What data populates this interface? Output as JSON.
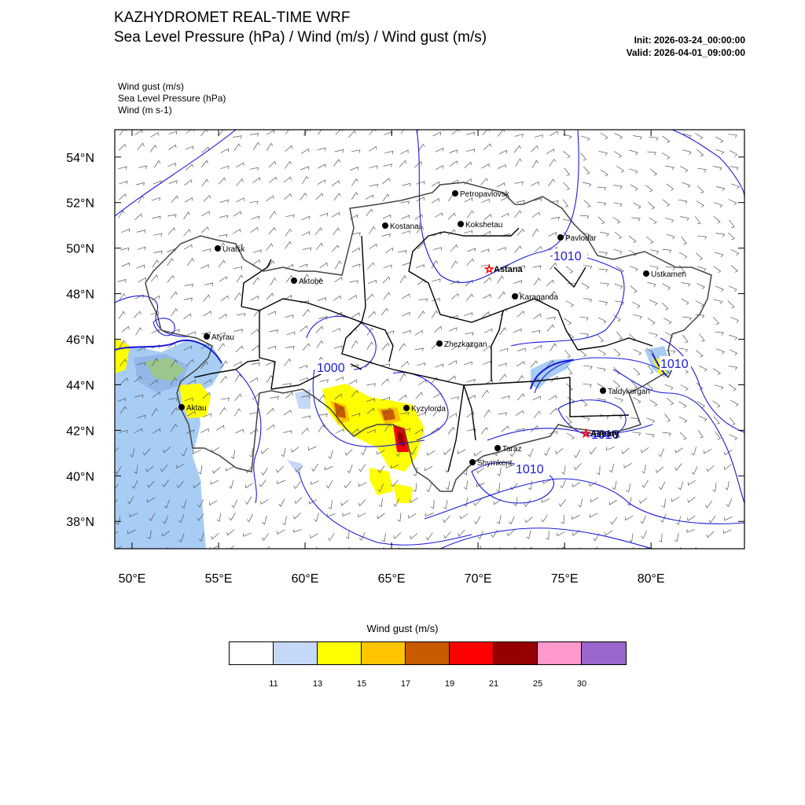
{
  "header": {
    "title": "KAZHYDROMET REAL-TIME WRF",
    "subtitle": "Sea Level Pressure  (hPa) / Wind  (m/s) / Wind gust  (m/s)",
    "init": "Init: 2026-03-24_00:00:00",
    "valid": "Valid: 2026-04-01_09:00:00"
  },
  "layers": [
    "Wind gust   (m/s)",
    "Sea Level Pressure   (hPa)",
    "Wind   (m s-1)"
  ],
  "map": {
    "lat_labels": [
      "54°N",
      "52°N",
      "50°N",
      "48°N",
      "46°N",
      "44°N",
      "42°N",
      "40°N",
      "38°N"
    ],
    "lon_labels": [
      "50°E",
      "55°E",
      "60°E",
      "65°E",
      "70°E",
      "75°E",
      "80°E"
    ],
    "cities": [
      {
        "name": "Petropavlovsk",
        "lat": 54.8,
        "lon": 69.1
      },
      {
        "name": "Kostanai",
        "lat": 53.2,
        "lon": 63.6
      },
      {
        "name": "Kokshetau",
        "lat": 53.3,
        "lon": 69.4
      },
      {
        "name": "Pavlodar",
        "lat": 52.3,
        "lon": 77.0
      },
      {
        "name": "Uralsk",
        "lat": 51.2,
        "lon": 51.4
      },
      {
        "name": "Astana",
        "lat": 51.2,
        "lon": 71.4,
        "capital": true
      },
      {
        "name": "Ustkamen",
        "lat": 49.9,
        "lon": 82.6
      },
      {
        "name": "Aktobe",
        "lat": 50.3,
        "lon": 57.2
      },
      {
        "name": "Karaganda",
        "lat": 49.8,
        "lon": 73.1
      },
      {
        "name": "Atyrau",
        "lat": 47.1,
        "lon": 51.9
      },
      {
        "name": "Zhezkazgan",
        "lat": 47.8,
        "lon": 67.7
      },
      {
        "name": "Taldykorgan",
        "lat": 45.0,
        "lon": 78.4
      },
      {
        "name": "Aktau",
        "lat": 43.6,
        "lon": 51.2
      },
      {
        "name": "Kyzylorda",
        "lat": 44.8,
        "lon": 65.5
      },
      {
        "name": "Almaty",
        "lat": 43.2,
        "lon": 76.9,
        "capital": true
      },
      {
        "name": "Taraz",
        "lat": 42.9,
        "lon": 71.4
      },
      {
        "name": "Shymkent",
        "lat": 42.3,
        "lon": 69.6
      }
    ],
    "isobar_labels": [
      "1010",
      "1000",
      "1010",
      "1010",
      "1010"
    ]
  },
  "colorbar": {
    "title": "Wind gust (m/s)",
    "colors": [
      "#ffffff",
      "#c6d8f7",
      "#ffff00",
      "#ffc400",
      "#c85a00",
      "#ff0000",
      "#960000",
      "#ff99cc",
      "#9966cc"
    ],
    "labels": [
      "11",
      "13",
      "15",
      "17",
      "19",
      "21",
      "25",
      "30"
    ]
  }
}
